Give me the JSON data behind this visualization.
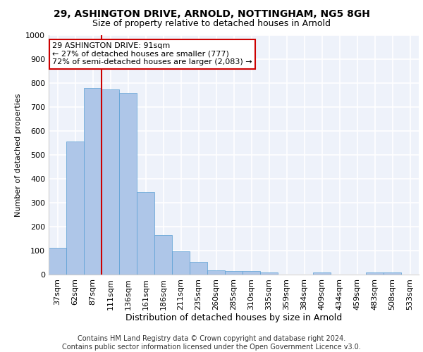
{
  "title1": "29, ASHINGTON DRIVE, ARNOLD, NOTTINGHAM, NG5 8GH",
  "title2": "Size of property relative to detached houses in Arnold",
  "xlabel": "Distribution of detached houses by size in Arnold",
  "ylabel": "Number of detached properties",
  "categories": [
    "37sqm",
    "62sqm",
    "87sqm",
    "111sqm",
    "136sqm",
    "161sqm",
    "186sqm",
    "211sqm",
    "235sqm",
    "260sqm",
    "285sqm",
    "310sqm",
    "335sqm",
    "359sqm",
    "384sqm",
    "409sqm",
    "434sqm",
    "459sqm",
    "483sqm",
    "508sqm",
    "533sqm"
  ],
  "values": [
    112,
    555,
    778,
    775,
    760,
    343,
    165,
    98,
    53,
    18,
    14,
    14,
    10,
    0,
    0,
    9,
    0,
    0,
    9,
    9,
    0
  ],
  "bar_color": "#aec6e8",
  "bar_edge_color": "#5a9fd4",
  "vline_color": "#cc0000",
  "annotation_text": "29 ASHINGTON DRIVE: 91sqm\n← 27% of detached houses are smaller (777)\n72% of semi-detached houses are larger (2,083) →",
  "annotation_box_color": "#ffffff",
  "annotation_box_edge": "#cc0000",
  "ylim": [
    0,
    1000
  ],
  "yticks": [
    0,
    100,
    200,
    300,
    400,
    500,
    600,
    700,
    800,
    900,
    1000
  ],
  "footer1": "Contains HM Land Registry data © Crown copyright and database right 2024.",
  "footer2": "Contains public sector information licensed under the Open Government Licence v3.0.",
  "bg_color": "#eef2fa",
  "grid_color": "#ffffff",
  "title1_fontsize": 10,
  "title2_fontsize": 9,
  "ylabel_fontsize": 8,
  "xlabel_fontsize": 9,
  "tick_fontsize": 8,
  "footer_fontsize": 7,
  "annot_fontsize": 8
}
